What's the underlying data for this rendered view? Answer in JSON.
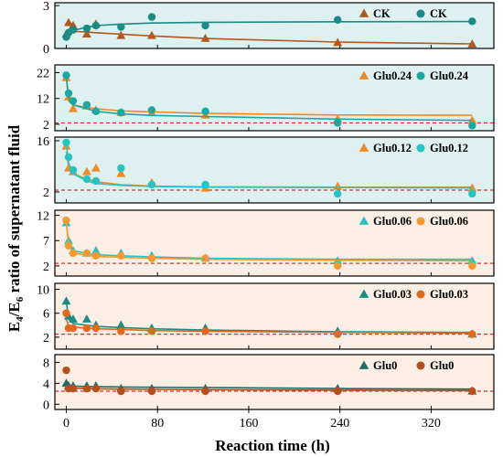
{
  "chart_data": {
    "type": "scatter",
    "xlabel": "Reaction time (h)",
    "ylabel": "E4/E6 ratio of supernatant fluid",
    "ylabel_main": "E",
    "ylabel_sub1": "4",
    "ylabel_slash": "/E",
    "ylabel_sub2": "6",
    "ylabel_rest": " ratio of supernatant fluid",
    "xlim": [
      -10,
      375
    ],
    "x_ticks": [
      0,
      80,
      160,
      240,
      320
    ],
    "x_tick_labels": [
      "0",
      "80",
      "160",
      "240",
      "320"
    ],
    "x": [
      0,
      2,
      6,
      18,
      26,
      48,
      75,
      122,
      238,
      356
    ],
    "reference_line": {
      "value": 2.5,
      "color": "#e03030",
      "style": "dashed"
    },
    "colors": {
      "orange": "#f08a24",
      "orange_dark": "#d2691e",
      "brown": "#b05a20",
      "teal": "#1a8c84",
      "cyan": "#25c4c4",
      "dark_teal": "#1d6e66"
    },
    "panels": [
      {
        "id": "ck",
        "background": "#dff0f0",
        "ylim": [
          0,
          3.2
        ],
        "y_ticks": [
          0,
          3
        ],
        "y_tick_labels": [
          "0",
          "3"
        ],
        "show_ref_line": false,
        "series": [
          {
            "name": "CK",
            "marker": "triangle",
            "color": "#b05a20",
            "values": [
              1.0,
              1.8,
              1.6,
              1.0,
              1.7,
              0.9,
              0.9,
              0.7,
              0.4,
              0.3
            ],
            "fit": [
              1.05,
              1.18,
              1.2,
              1.15,
              1.1,
              1.0,
              0.88,
              0.7,
              0.45,
              0.32
            ]
          },
          {
            "name": "CK",
            "marker": "circle",
            "color": "#1a8c84",
            "values": [
              0.8,
              1.1,
              1.3,
              1.4,
              1.6,
              1.5,
              2.2,
              1.6,
              2.0,
              1.9
            ],
            "fit": [
              0.75,
              1.0,
              1.25,
              1.5,
              1.6,
              1.7,
              1.78,
              1.83,
              1.87,
              1.88
            ]
          }
        ]
      },
      {
        "id": "glu024",
        "background": "#dff0f0",
        "ylim": [
          -0.5,
          25
        ],
        "y_ticks": [
          2,
          12,
          22
        ],
        "y_tick_labels": [
          "2",
          "12",
          "22"
        ],
        "show_ref_line": true,
        "series": [
          {
            "name": "Glu0.24",
            "marker": "triangle",
            "color": "#f08a24",
            "values": [
              20.0,
              12.5,
              8.0,
              9.0,
              7.5,
              6.5,
              6.5,
              5.5,
              4.0,
              3.5
            ],
            "fit": [
              20.0,
              11.0,
              9.5,
              8.5,
              8.0,
              7.2,
              6.8,
              6.2,
              5.6,
              5.5
            ]
          },
          {
            "name": "Glu0.24",
            "marker": "circle",
            "color": "#1aa8a0",
            "values": [
              21.0,
              14.0,
              11.0,
              9.5,
              7.0,
              6.5,
              7.5,
              7.0,
              2.5,
              1.5
            ],
            "fit": [
              21.0,
              12.0,
              9.5,
              8.0,
              7.0,
              6.0,
              5.4,
              5.0,
              4.0,
              3.5
            ]
          }
        ]
      },
      {
        "id": "glu012",
        "background": "#dff0f0",
        "ylim": [
          -1,
          17
        ],
        "y_ticks": [
          2,
          16
        ],
        "y_tick_labels": [
          "2",
          "16"
        ],
        "show_ref_line": true,
        "series": [
          {
            "name": "Glu0.12",
            "marker": "triangle",
            "color": "#f08a24",
            "values": [
              14.5,
              8.5,
              7.5,
              7.5,
              8.5,
              7.0,
              4.5,
              3.0,
              3.5,
              3.0
            ],
            "fit": [
              13.0,
              9.0,
              7.0,
              5.5,
              4.8,
              4.0,
              3.6,
              3.4,
              3.3,
              3.3
            ]
          },
          {
            "name": "Glu0.12",
            "marker": "circle",
            "color": "#25c4c4",
            "values": [
              15.5,
              11.5,
              8.0,
              5.5,
              5.0,
              8.5,
              4.0,
              4.0,
              1.5,
              1.5
            ],
            "fit": [
              15.0,
              10.0,
              7.0,
              5.0,
              4.3,
              3.8,
              3.5,
              3.3,
              3.2,
              3.1
            ]
          }
        ]
      },
      {
        "id": "glu006",
        "background": "#fbeee4",
        "ylim": [
          0,
          13
        ],
        "y_ticks": [
          2,
          7,
          12
        ],
        "y_tick_labels": [
          "2",
          "7",
          "12"
        ],
        "show_ref_line": true,
        "series": [
          {
            "name": "Glu0.06",
            "marker": "triangle",
            "color": "#25c4c4",
            "values": [
              10.5,
              7.0,
              5.0,
              4.5,
              5.0,
              4.5,
              4.0,
              3.5,
              3.0,
              3.0
            ],
            "fit": [
              10.5,
              6.5,
              5.0,
              4.5,
              4.2,
              4.0,
              3.8,
              3.5,
              3.3,
              3.3
            ]
          },
          {
            "name": "Glu0.06",
            "marker": "circle",
            "color": "#f59a30",
            "values": [
              11.0,
              6.0,
              4.5,
              4.5,
              4.0,
              4.0,
              3.5,
              3.5,
              2.0,
              2.0
            ],
            "fit": [
              11.0,
              6.0,
              4.6,
              4.1,
              3.9,
              3.7,
              3.5,
              3.3,
              3.1,
              3.0
            ]
          }
        ]
      },
      {
        "id": "glu003",
        "background": "#fbeee4",
        "ylim": [
          0,
          11
        ],
        "y_ticks": [
          2,
          6,
          10
        ],
        "y_tick_labels": [
          "2",
          "6",
          "10"
        ],
        "show_ref_line": true,
        "series": [
          {
            "name": "Glu0.03",
            "marker": "triangle",
            "color": "#1a8c84",
            "values": [
              8.0,
              5.5,
              5.0,
              5.0,
              4.0,
              4.0,
              3.5,
              3.5,
              3.0,
              2.5
            ],
            "fit": [
              8.0,
              5.0,
              4.3,
              4.0,
              3.8,
              3.6,
              3.4,
              3.2,
              2.9,
              2.8
            ]
          },
          {
            "name": "Glu0.03",
            "marker": "circle",
            "color": "#e06a1c",
            "values": [
              6.0,
              3.5,
              3.5,
              3.5,
              3.5,
              3.0,
              3.0,
              3.0,
              2.5,
              2.5
            ],
            "fit": [
              5.0,
              4.0,
              3.7,
              3.5,
              3.4,
              3.3,
              3.1,
              3.0,
              2.8,
              2.7
            ]
          }
        ]
      },
      {
        "id": "glu0",
        "background": "#fbeee4",
        "ylim": [
          -1,
          9.5
        ],
        "y_ticks": [
          0,
          4,
          8
        ],
        "y_tick_labels": [
          "0",
          "4",
          "8"
        ],
        "show_ref_line": true,
        "series": [
          {
            "name": "Glu0",
            "marker": "triangle",
            "color": "#1d6e66",
            "values": [
              4.0,
              3.5,
              3.5,
              3.5,
              3.5,
              3.0,
              3.0,
              3.0,
              3.0,
              2.5
            ],
            "fit": [
              3.8,
              3.6,
              3.5,
              3.4,
              3.35,
              3.3,
              3.25,
              3.2,
              3.0,
              2.9
            ]
          },
          {
            "name": "Glu0",
            "marker": "circle",
            "color": "#b5501c",
            "values": [
              6.5,
              3.0,
              3.0,
              3.0,
              3.0,
              2.5,
              2.5,
              2.5,
              2.5,
              2.5
            ],
            "fit": [
              3.5,
              3.2,
              3.1,
              3.0,
              2.95,
              2.9,
              2.85,
              2.8,
              2.7,
              2.6
            ]
          }
        ]
      }
    ]
  }
}
